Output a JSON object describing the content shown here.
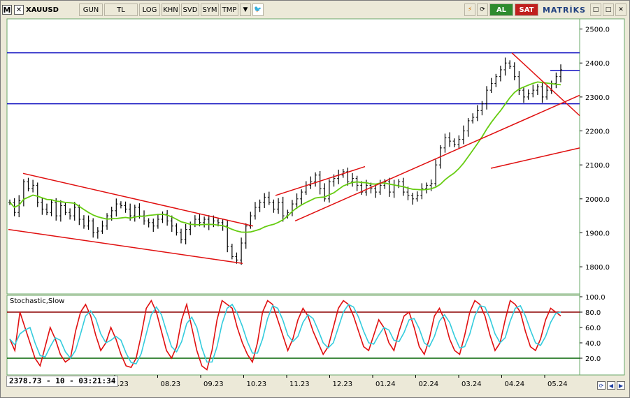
{
  "toolbar": {
    "logo": "M",
    "close": "✕",
    "symbol": "XAUUSD",
    "buttons": [
      "GUN",
      "TL",
      "LOG",
      "KHN",
      "SVD",
      "SYM",
      "TMP"
    ],
    "dropdown": "▼",
    "bird": "🐦",
    "tools": [
      "⚡",
      "⟳"
    ],
    "buy_label": "AL",
    "sell_label": "SAT",
    "brand": "MATRİKS",
    "win_buttons": [
      "□",
      "□",
      "✕"
    ]
  },
  "status": {
    "readout": "2378.73 - 10 - 03:21:34"
  },
  "navigation": {
    "buttons": [
      "⟳",
      "◀",
      "▶"
    ]
  },
  "chart_data": [
    {
      "type": "candlestick",
      "title": "",
      "ylabel": "",
      "ylim": [
        1720,
        2530
      ],
      "y_ticks": [
        1800,
        1900,
        2000,
        2100,
        2200,
        2300,
        2400,
        2500
      ],
      "x_ticks": [
        ".23",
        "08.23",
        "09.23",
        "10.23",
        "11.23",
        "12.23",
        "01.24",
        "02.24",
        "03.24",
        "04.24",
        "05.24"
      ],
      "horizontal_levels": [
        2430,
        2280,
        2378
      ],
      "series": [
        {
          "name": "",
          "close": [
            1990,
            1960,
            1995,
            2050,
            2030,
            2040,
            1990,
            1970,
            1960,
            1990,
            1950,
            1980,
            1960,
            1950,
            1975,
            1940,
            1920,
            1935,
            1900,
            1905,
            1920,
            1950,
            1965,
            1985,
            1980,
            1970,
            1950,
            1975,
            1950,
            1935,
            1930,
            1920,
            1940,
            1955,
            1935,
            1920,
            1900,
            1880,
            1910,
            1925,
            1940,
            1930,
            1940,
            1925,
            1935,
            1930,
            1920,
            1860,
            1830,
            1820,
            1870,
            1920,
            1950,
            1975,
            1990,
            2005,
            1990,
            1970,
            1990,
            1950,
            1960,
            1985,
            2000,
            2020,
            2040,
            2050,
            2070,
            2030,
            2000,
            2050,
            2060,
            2070,
            2080,
            2050,
            2060,
            2040,
            2020,
            2040,
            2030,
            2020,
            2040,
            2050,
            2020,
            2040,
            2050,
            2020,
            2010,
            2000,
            2010,
            2030,
            2040,
            2045,
            2100,
            2150,
            2180,
            2170,
            2160,
            2175,
            2200,
            2230,
            2240,
            2260,
            2280,
            2320,
            2340,
            2360,
            2380,
            2400,
            2390,
            2360,
            2320,
            2300,
            2310,
            2320,
            2330,
            2300,
            2320,
            2340,
            2360,
            2380
          ]
        },
        {
          "name": "",
          "type": "moving-average"
        }
      ],
      "trendlines": "red channel lines"
    },
    {
      "type": "line",
      "title": "Stochastic,Slow",
      "ylim": [
        0,
        100
      ],
      "y_ticks": [
        100,
        80,
        60,
        40,
        20
      ],
      "levels": [
        80,
        20
      ],
      "series": [
        {
          "name": "",
          "values": [
            45,
            30,
            80,
            60,
            40,
            20,
            10,
            35,
            60,
            45,
            25,
            15,
            20,
            55,
            80,
            90,
            75,
            50,
            30,
            40,
            60,
            45,
            25,
            10,
            8,
            20,
            50,
            85,
            95,
            80,
            55,
            30,
            20,
            35,
            70,
            90,
            60,
            30,
            10,
            5,
            30,
            70,
            95,
            90,
            85,
            60,
            40,
            25,
            15,
            40,
            80,
            95,
            90,
            70,
            50,
            30,
            45,
            70,
            85,
            75,
            55,
            40,
            25,
            35,
            60,
            85,
            95,
            90,
            75,
            55,
            35,
            30,
            50,
            70,
            60,
            40,
            30,
            55,
            75,
            80,
            60,
            35,
            25,
            45,
            75,
            85,
            70,
            45,
            30,
            25,
            50,
            80,
            95,
            90,
            75,
            50,
            30,
            40,
            70,
            95,
            90,
            80,
            55,
            35,
            30,
            45,
            70,
            85,
            80,
            75
          ]
        },
        {
          "name": "",
          "values": []
        }
      ]
    }
  ]
}
